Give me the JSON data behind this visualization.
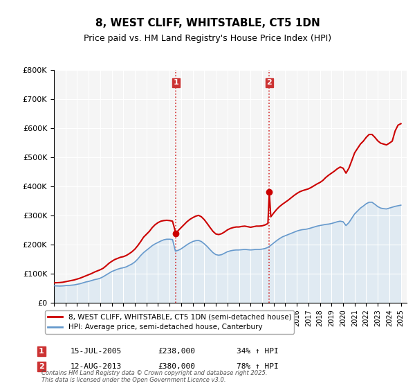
{
  "title": "8, WEST CLIFF, WHITSTABLE, CT5 1DN",
  "subtitle": "Price paid vs. HM Land Registry's House Price Index (HPI)",
  "xlabel": "",
  "ylabel": "",
  "ylim": [
    0,
    800000
  ],
  "xlim_start": 1995.0,
  "xlim_end": 2025.5,
  "red_line_color": "#cc0000",
  "blue_line_color": "#6699cc",
  "fill_color": "#cce0f0",
  "vline_color": "#cc0000",
  "vline_style": ":",
  "annotation_box_color": "#cc3333",
  "legend_label_red": "8, WEST CLIFF, WHITSTABLE, CT5 1DN (semi-detached house)",
  "legend_label_blue": "HPI: Average price, semi-detached house, Canterbury",
  "annotation1_label": "1",
  "annotation1_date": 2005.54,
  "annotation1_price": 238000,
  "annotation1_text": "15-JUL-2005",
  "annotation1_amount": "£238,000",
  "annotation1_pct": "34% ↑ HPI",
  "annotation2_label": "2",
  "annotation2_date": 2013.62,
  "annotation2_price": 380000,
  "annotation2_text": "12-AUG-2013",
  "annotation2_amount": "£380,000",
  "annotation2_pct": "78% ↑ HPI",
  "footer_text": "Contains HM Land Registry data © Crown copyright and database right 2025.\nThis data is licensed under the Open Government Licence v3.0.",
  "background_color": "#ffffff",
  "plot_bg_color": "#f5f5f5",
  "hpi_data_x": [
    1995.0,
    1995.25,
    1995.5,
    1995.75,
    1996.0,
    1996.25,
    1996.5,
    1996.75,
    1997.0,
    1997.25,
    1997.5,
    1997.75,
    1998.0,
    1998.25,
    1998.5,
    1998.75,
    1999.0,
    1999.25,
    1999.5,
    1999.75,
    2000.0,
    2000.25,
    2000.5,
    2000.75,
    2001.0,
    2001.25,
    2001.5,
    2001.75,
    2002.0,
    2002.25,
    2002.5,
    2002.75,
    2003.0,
    2003.25,
    2003.5,
    2003.75,
    2004.0,
    2004.25,
    2004.5,
    2004.75,
    2005.0,
    2005.25,
    2005.5,
    2005.75,
    2006.0,
    2006.25,
    2006.5,
    2006.75,
    2007.0,
    2007.25,
    2007.5,
    2007.75,
    2008.0,
    2008.25,
    2008.5,
    2008.75,
    2009.0,
    2009.25,
    2009.5,
    2009.75,
    2010.0,
    2010.25,
    2010.5,
    2010.75,
    2011.0,
    2011.25,
    2011.5,
    2011.75,
    2012.0,
    2012.25,
    2012.5,
    2012.75,
    2013.0,
    2013.25,
    2013.5,
    2013.75,
    2014.0,
    2014.25,
    2014.5,
    2014.75,
    2015.0,
    2015.25,
    2015.5,
    2015.75,
    2016.0,
    2016.25,
    2016.5,
    2016.75,
    2017.0,
    2017.25,
    2017.5,
    2017.75,
    2018.0,
    2018.25,
    2018.5,
    2018.75,
    2019.0,
    2019.25,
    2019.5,
    2019.75,
    2020.0,
    2020.25,
    2020.5,
    2020.75,
    2021.0,
    2021.25,
    2021.5,
    2021.75,
    2022.0,
    2022.25,
    2022.5,
    2022.75,
    2023.0,
    2023.25,
    2023.5,
    2023.75,
    2024.0,
    2024.25,
    2024.5,
    2024.75,
    2025.0
  ],
  "hpi_data_y": [
    58000,
    57500,
    57000,
    57500,
    58500,
    59000,
    60000,
    61000,
    63000,
    65000,
    68000,
    71000,
    73000,
    76000,
    79000,
    81000,
    84000,
    89000,
    95000,
    101000,
    107000,
    111000,
    115000,
    118000,
    120000,
    123000,
    128000,
    133000,
    140000,
    150000,
    162000,
    172000,
    180000,
    188000,
    196000,
    202000,
    207000,
    212000,
    216000,
    218000,
    218000,
    217000,
    177000,
    180000,
    185000,
    192000,
    199000,
    205000,
    210000,
    213000,
    214000,
    210000,
    202000,
    193000,
    182000,
    172000,
    165000,
    163000,
    165000,
    170000,
    175000,
    178000,
    180000,
    181000,
    181000,
    182000,
    183000,
    182000,
    181000,
    182000,
    183000,
    183000,
    184000,
    186000,
    190000,
    197000,
    205000,
    213000,
    220000,
    226000,
    230000,
    234000,
    238000,
    242000,
    246000,
    249000,
    251000,
    252000,
    254000,
    257000,
    260000,
    263000,
    265000,
    267000,
    269000,
    270000,
    272000,
    275000,
    278000,
    280000,
    278000,
    265000,
    275000,
    290000,
    305000,
    315000,
    325000,
    332000,
    340000,
    345000,
    345000,
    338000,
    330000,
    325000,
    323000,
    322000,
    325000,
    328000,
    331000,
    333000,
    335000
  ],
  "red_data_x": [
    1995.0,
    1995.25,
    1995.5,
    1995.75,
    1996.0,
    1996.25,
    1996.5,
    1996.75,
    1997.0,
    1997.25,
    1997.5,
    1997.75,
    1998.0,
    1998.25,
    1998.5,
    1998.75,
    1999.0,
    1999.25,
    1999.5,
    1999.75,
    2000.0,
    2000.25,
    2000.5,
    2000.75,
    2001.0,
    2001.25,
    2001.5,
    2001.75,
    2002.0,
    2002.25,
    2002.5,
    2002.75,
    2003.0,
    2003.25,
    2003.5,
    2003.75,
    2004.0,
    2004.25,
    2004.5,
    2004.75,
    2005.0,
    2005.25,
    2005.54,
    2005.75,
    2006.0,
    2006.25,
    2006.5,
    2006.75,
    2007.0,
    2007.25,
    2007.5,
    2007.75,
    2008.0,
    2008.25,
    2008.5,
    2008.75,
    2009.0,
    2009.25,
    2009.5,
    2009.75,
    2010.0,
    2010.25,
    2010.5,
    2010.75,
    2011.0,
    2011.25,
    2011.5,
    2011.75,
    2012.0,
    2012.25,
    2012.5,
    2012.75,
    2013.0,
    2013.25,
    2013.5,
    2013.62,
    2013.75,
    2014.0,
    2014.25,
    2014.5,
    2014.75,
    2015.0,
    2015.25,
    2015.5,
    2015.75,
    2016.0,
    2016.25,
    2016.5,
    2016.75,
    2017.0,
    2017.25,
    2017.5,
    2017.75,
    2018.0,
    2018.25,
    2018.5,
    2018.75,
    2019.0,
    2019.25,
    2019.5,
    2019.75,
    2020.0,
    2020.25,
    2020.5,
    2020.75,
    2021.0,
    2021.25,
    2021.5,
    2021.75,
    2022.0,
    2022.25,
    2022.5,
    2022.75,
    2023.0,
    2023.25,
    2023.5,
    2023.75,
    2024.0,
    2024.25,
    2024.5,
    2024.75,
    2025.0
  ],
  "red_data_y": [
    68000,
    68500,
    69000,
    70000,
    72000,
    74000,
    76000,
    78000,
    81000,
    84000,
    88000,
    92000,
    96000,
    100000,
    105000,
    109000,
    113000,
    118000,
    126000,
    135000,
    142000,
    148000,
    152000,
    156000,
    158000,
    162000,
    168000,
    175000,
    184000,
    196000,
    210000,
    225000,
    235000,
    245000,
    258000,
    268000,
    275000,
    280000,
    282000,
    283000,
    282000,
    280000,
    238000,
    248000,
    258000,
    268000,
    278000,
    286000,
    292000,
    297000,
    300000,
    295000,
    285000,
    272000,
    258000,
    245000,
    236000,
    234000,
    237000,
    243000,
    250000,
    255000,
    258000,
    260000,
    260000,
    262000,
    263000,
    261000,
    259000,
    261000,
    263000,
    263000,
    264000,
    267000,
    272000,
    380000,
    295000,
    308000,
    320000,
    330000,
    338000,
    345000,
    352000,
    360000,
    368000,
    375000,
    381000,
    385000,
    388000,
    391000,
    396000,
    402000,
    408000,
    413000,
    420000,
    430000,
    438000,
    445000,
    452000,
    460000,
    466000,
    462000,
    445000,
    462000,
    488000,
    515000,
    530000,
    545000,
    555000,
    568000,
    578000,
    578000,
    568000,
    556000,
    548000,
    545000,
    542000,
    548000,
    555000,
    590000,
    610000,
    615000
  ]
}
